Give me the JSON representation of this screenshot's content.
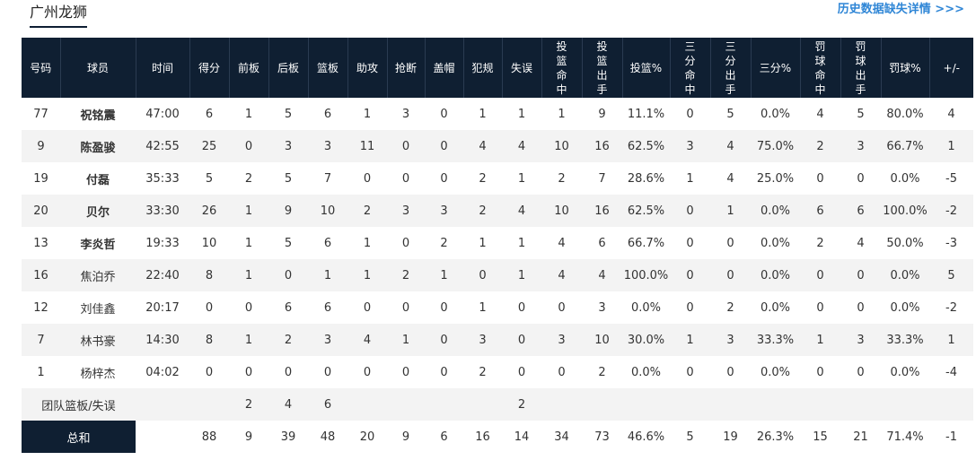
{
  "team_tab": "广州龙狮",
  "history_link": "历史数据缺失详情 >>>",
  "columns": [
    {
      "label": "号码",
      "vertical": false
    },
    {
      "label": "球员",
      "vertical": false
    },
    {
      "label": "时间",
      "vertical": false
    },
    {
      "label": "得分",
      "vertical": false
    },
    {
      "label": "前板",
      "vertical": false
    },
    {
      "label": "后板",
      "vertical": false
    },
    {
      "label": "篮板",
      "vertical": false
    },
    {
      "label": "助攻",
      "vertical": false
    },
    {
      "label": "抢断",
      "vertical": false
    },
    {
      "label": "盖帽",
      "vertical": false
    },
    {
      "label": "犯规",
      "vertical": false
    },
    {
      "label": "失误",
      "vertical": false
    },
    {
      "label": "投篮命中",
      "vertical": true
    },
    {
      "label": "投篮出手",
      "vertical": true
    },
    {
      "label": "投篮%",
      "vertical": false
    },
    {
      "label": "三分命中",
      "vertical": true
    },
    {
      "label": "三分出手",
      "vertical": true
    },
    {
      "label": "三分%",
      "vertical": false
    },
    {
      "label": "罚球命中",
      "vertical": true
    },
    {
      "label": "罚球出手",
      "vertical": true
    },
    {
      "label": "罚球%",
      "vertical": false
    },
    {
      "label": "+/-",
      "vertical": false
    }
  ],
  "players": [
    {
      "starter": true,
      "cells": [
        "77",
        "祝铭震",
        "47:00",
        "6",
        "1",
        "5",
        "6",
        "1",
        "3",
        "0",
        "1",
        "1",
        "1",
        "9",
        "11.1%",
        "0",
        "5",
        "0.0%",
        "4",
        "5",
        "80.0%",
        "4"
      ]
    },
    {
      "starter": true,
      "cells": [
        "9",
        "陈盈骏",
        "42:55",
        "25",
        "0",
        "3",
        "3",
        "11",
        "0",
        "0",
        "4",
        "4",
        "10",
        "16",
        "62.5%",
        "3",
        "4",
        "75.0%",
        "2",
        "3",
        "66.7%",
        "1"
      ]
    },
    {
      "starter": true,
      "cells": [
        "19",
        "付磊",
        "35:33",
        "5",
        "2",
        "5",
        "7",
        "0",
        "0",
        "0",
        "2",
        "1",
        "2",
        "7",
        "28.6%",
        "1",
        "4",
        "25.0%",
        "0",
        "0",
        "0.0%",
        "-5"
      ]
    },
    {
      "starter": true,
      "cells": [
        "20",
        "贝尔",
        "33:30",
        "26",
        "1",
        "9",
        "10",
        "2",
        "3",
        "3",
        "2",
        "4",
        "10",
        "16",
        "62.5%",
        "0",
        "1",
        "0.0%",
        "6",
        "6",
        "100.0%",
        "-2"
      ]
    },
    {
      "starter": true,
      "cells": [
        "13",
        "李炎哲",
        "19:33",
        "10",
        "1",
        "5",
        "6",
        "1",
        "0",
        "2",
        "1",
        "1",
        "4",
        "6",
        "66.7%",
        "0",
        "0",
        "0.0%",
        "2",
        "4",
        "50.0%",
        "-3"
      ]
    },
    {
      "starter": false,
      "cells": [
        "16",
        "焦泊乔",
        "22:40",
        "8",
        "1",
        "0",
        "1",
        "1",
        "2",
        "1",
        "0",
        "1",
        "4",
        "4",
        "100.0%",
        "0",
        "0",
        "0.0%",
        "0",
        "0",
        "0.0%",
        "5"
      ]
    },
    {
      "starter": false,
      "cells": [
        "12",
        "刘佳鑫",
        "20:17",
        "0",
        "0",
        "6",
        "6",
        "0",
        "0",
        "0",
        "1",
        "0",
        "0",
        "3",
        "0.0%",
        "0",
        "2",
        "0.0%",
        "0",
        "0",
        "0.0%",
        "-2"
      ]
    },
    {
      "starter": false,
      "cells": [
        "7",
        "林书豪",
        "14:30",
        "8",
        "1",
        "2",
        "3",
        "4",
        "1",
        "0",
        "3",
        "0",
        "3",
        "10",
        "30.0%",
        "1",
        "3",
        "33.3%",
        "1",
        "3",
        "33.3%",
        "1"
      ]
    },
    {
      "starter": false,
      "cells": [
        "1",
        "杨梓杰",
        "04:02",
        "0",
        "0",
        "0",
        "0",
        "0",
        "0",
        "0",
        "2",
        "0",
        "0",
        "2",
        "0.0%",
        "0",
        "0",
        "0.0%",
        "0",
        "0",
        "0.0%",
        "-4"
      ]
    }
  ],
  "team_row": {
    "label": "团队篮板/失误",
    "cells": [
      "",
      "",
      "2",
      "4",
      "6",
      "",
      "",
      "",
      "",
      "2",
      "",
      "",
      "",
      "",
      "",
      "",
      "",
      "",
      "",
      ""
    ]
  },
  "total_row": {
    "label": "总和",
    "cells": [
      "",
      "88",
      "9",
      "39",
      "48",
      "20",
      "9",
      "6",
      "16",
      "14",
      "34",
      "73",
      "46.6%",
      "5",
      "19",
      "26.3%",
      "15",
      "21",
      "71.4%",
      "-1"
    ]
  }
}
